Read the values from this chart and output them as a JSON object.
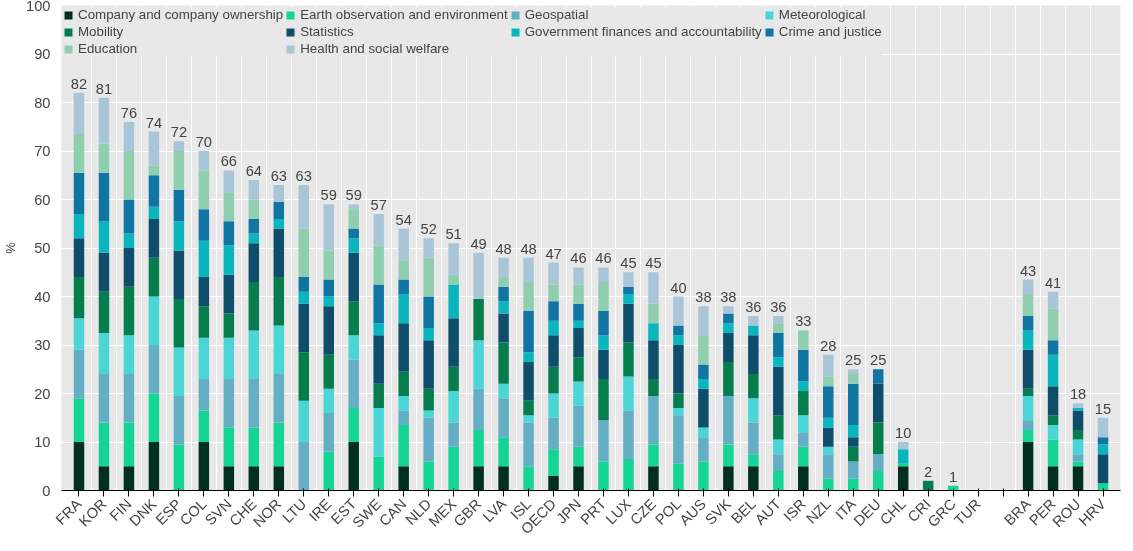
{
  "chart_data": {
    "type": "bar",
    "stacked": true,
    "ylabel": "%",
    "categories": [
      "FRA",
      "KOR",
      "FIN",
      "DNK",
      "ESP",
      "COL",
      "SVN",
      "CHE",
      "NOR",
      "LTU",
      "IRE",
      "EST",
      "SWE",
      "CAN",
      "NLD",
      "MEX",
      "GBR",
      "LVA",
      "ISL",
      "OECD",
      "JPN",
      "PRT",
      "LUX",
      "CZE",
      "POL",
      "AUS",
      "SVK",
      "BEL",
      "AUT",
      "ISR",
      "NZL",
      "ITA",
      "DEU",
      "CHL",
      "CRI",
      "GRC",
      "TUR",
      null,
      "BRA",
      "PER",
      "ROU",
      "HRV"
    ],
    "ylim": [
      0,
      100
    ],
    "yticks": [
      0,
      10,
      20,
      30,
      40,
      50,
      60,
      70,
      80,
      90,
      100
    ],
    "grid": true,
    "legend": "top",
    "series": [
      {
        "name": "Company and company ownership",
        "color": "#00301f",
        "values": [
          10,
          5,
          5,
          10,
          0,
          10,
          5,
          5,
          5,
          0,
          0,
          10,
          0,
          5,
          0,
          0,
          5,
          5,
          0,
          3,
          5,
          0,
          0,
          5,
          0,
          0,
          5,
          5,
          0,
          5,
          0,
          0,
          0,
          5,
          0,
          0,
          0,
          null,
          10,
          5,
          5,
          0
        ]
      },
      {
        "name": "Earth observation and environment",
        "color": "#14d496",
        "values": [
          9,
          9,
          9,
          10,
          9.5,
          6.5,
          8,
          8,
          9,
          0,
          8,
          7,
          7,
          8.5,
          6,
          9,
          7.5,
          6,
          5,
          5.5,
          4,
          6,
          6.5,
          4.5,
          5.5,
          6,
          4.5,
          2.5,
          4,
          4,
          2.5,
          2.5,
          4,
          0.5,
          0,
          1,
          0,
          null,
          2.5,
          5.5,
          1,
          1.5
        ]
      },
      {
        "name": "Geospatial",
        "color": "#64afc6",
        "values": [
          10,
          10,
          10,
          10,
          10,
          6.5,
          10,
          10,
          10,
          10,
          8,
          10,
          0,
          3,
          9,
          5,
          8.5,
          8,
          9,
          6.5,
          8.5,
          8.5,
          10,
          10,
          10,
          5,
          10,
          6.5,
          3.5,
          3,
          5,
          3.5,
          3.5,
          0,
          0,
          0,
          0,
          null,
          2,
          0,
          1.5,
          0
        ]
      },
      {
        "name": "Meteorological",
        "color": "#4ad6d6",
        "values": [
          6.5,
          8.5,
          8,
          10,
          10,
          8.5,
          8.5,
          10,
          10,
          8.5,
          5,
          5,
          10,
          3,
          1.5,
          6.5,
          10,
          3,
          1.5,
          5,
          5,
          0,
          7,
          0,
          1.5,
          2,
          0,
          5,
          3,
          3.5,
          1.5,
          0,
          0,
          0,
          0,
          0,
          0,
          null,
          5,
          3,
          3,
          0
        ]
      },
      {
        "name": "Mobility",
        "color": "#067d4f",
        "values": [
          8.5,
          8.5,
          10,
          8,
          10,
          6.5,
          5,
          10,
          10,
          10,
          7,
          7,
          5,
          5,
          4.5,
          5,
          8.5,
          8.5,
          3,
          5.5,
          5,
          8.5,
          7,
          3.5,
          3,
          0,
          7,
          5,
          5,
          5,
          0,
          3,
          6.5,
          0,
          2,
          0,
          0,
          null,
          1.5,
          2,
          2,
          0
        ]
      },
      {
        "name": "Statistics",
        "color": "#0e4e6b",
        "values": [
          8,
          8,
          8,
          8,
          10,
          6,
          8,
          8,
          10,
          10,
          10,
          10,
          10,
          10,
          10,
          10,
          0,
          6,
          8,
          6.5,
          6,
          6,
          8,
          8,
          10,
          8,
          6,
          8,
          10,
          0,
          4,
          2,
          8,
          0,
          0,
          0,
          0,
          null,
          8,
          6,
          4,
          6
        ]
      },
      {
        "name": "Government finances and accountability",
        "color": "#0ab6bd",
        "values": [
          5,
          6.5,
          3,
          2.5,
          6,
          7.5,
          6,
          2,
          2,
          2.5,
          2,
          3,
          2.5,
          6,
          2.5,
          7,
          0,
          2.5,
          2,
          3,
          1.5,
          3,
          2,
          3.5,
          2,
          2,
          2,
          2,
          2,
          2,
          2,
          2.5,
          0,
          3,
          0,
          0,
          0,
          null,
          4,
          6.5,
          0.5,
          2
        ]
      },
      {
        "name": "Crime and justice",
        "color": "#1175a3",
        "values": [
          8.5,
          10,
          7,
          6.5,
          6.5,
          6.5,
          5,
          3,
          3.5,
          3,
          3.5,
          2,
          8,
          3,
          6.5,
          0,
          0,
          3,
          8.5,
          4,
          3.5,
          5,
          1.5,
          0,
          2,
          3,
          2,
          0,
          5,
          6.5,
          6.5,
          8.5,
          3,
          0,
          0,
          0,
          0,
          null,
          3,
          3,
          0,
          1.5
        ]
      },
      {
        "name": "Education",
        "color": "#8fcfb0",
        "values": [
          8,
          6,
          10,
          2,
          8,
          8,
          6,
          4,
          0,
          10,
          6,
          4,
          8,
          4,
          8,
          2,
          0,
          2,
          6,
          3.5,
          4,
          6,
          0,
          4,
          0,
          6,
          0,
          0,
          2,
          4,
          2,
          2,
          0,
          0,
          0,
          0,
          0,
          null,
          4.5,
          6.5,
          0,
          0
        ]
      },
      {
        "name": "Health and social welfare",
        "color": "#a9c6d9",
        "values": [
          8.5,
          9.5,
          6,
          7,
          2,
          4,
          4.5,
          4,
          3.5,
          9,
          9.5,
          1,
          6.5,
          6.5,
          4,
          6.5,
          9.5,
          4,
          5,
          4.5,
          3.5,
          3,
          3,
          6.5,
          6,
          6,
          1.5,
          2,
          1.5,
          0,
          4.5,
          1,
          0,
          1.5,
          0,
          0,
          0,
          null,
          3,
          3.5,
          1,
          4
        ]
      }
    ],
    "totals": [
      "82",
      "81",
      "76",
      "74",
      "72",
      "70",
      "66",
      "64",
      "63",
      "63",
      "59",
      "59",
      "57",
      "54",
      "52",
      "51",
      "49",
      "48",
      "48",
      "47",
      "46",
      "46",
      "45",
      "45",
      "40",
      "38",
      "38",
      "36",
      "36",
      "33",
      "28",
      "25",
      "25",
      "10",
      "2",
      "1",
      null,
      null,
      "43",
      "41",
      "18",
      "15"
    ]
  }
}
